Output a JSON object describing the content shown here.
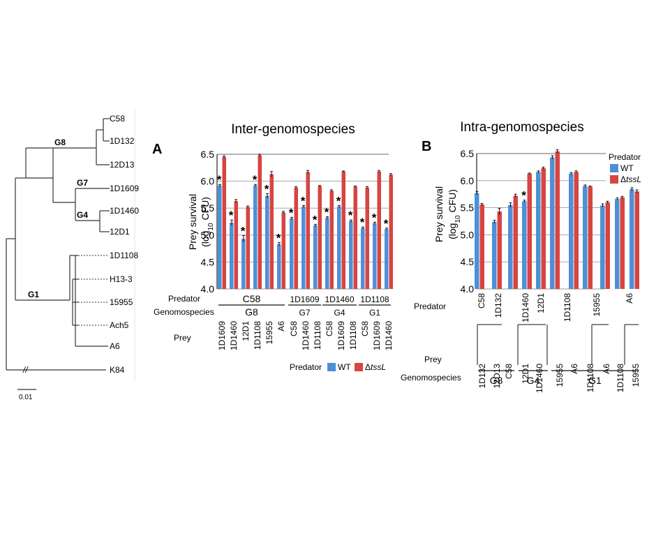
{
  "tree": {
    "leaves": [
      "C58",
      "1D132",
      "12D13",
      "1D1609",
      "1D1460",
      "12D1",
      "1D1108",
      "H13-3",
      "15955",
      "Ach5",
      "A6",
      "K84"
    ],
    "groups": [
      "G8",
      "G7",
      "G4",
      "G1"
    ],
    "break_mark": "//",
    "scale_label": "0.01"
  },
  "colors": {
    "wt": "#4f8fd8",
    "tssl": "#d64541",
    "grid": "#9a9a9a",
    "tree": "#333333"
  },
  "chart_data": [
    {
      "type": "bar",
      "panel": "A",
      "title": "Inter-genomospecies",
      "ylabel": "Prey survival",
      "ylabel2": "(log10 CFU)",
      "ylim": [
        4.0,
        6.5
      ],
      "yticks": [
        "4.0",
        "4.5",
        "5.0",
        "5.5",
        "6.0",
        "6.5"
      ],
      "grid": true,
      "row_labels": {
        "predator": "Predator",
        "genomospecies": "Genomospecies",
        "prey": "Prey"
      },
      "predator_groups": [
        {
          "predator": "C58",
          "genomospecies": "G8"
        },
        {
          "predator": "1D1609",
          "genomospecies": "G7"
        },
        {
          "predator": "1D1460",
          "genomospecies": "G4"
        },
        {
          "predator": "1D1108",
          "genomospecies": "G1"
        }
      ],
      "categories": [
        "1D1609",
        "1D1460",
        "12D1",
        "1D1108",
        "15955",
        "A6",
        "C58",
        "1D1460",
        "1D1108",
        "C58",
        "1D1609",
        "1D1108",
        "C58",
        "1D1609",
        "1D1460"
      ],
      "series": [
        {
          "name": "WT",
          "values": [
            5.92,
            5.23,
            4.93,
            5.92,
            5.73,
            4.83,
            5.31,
            5.53,
            5.18,
            5.32,
            5.53,
            5.26,
            5.13,
            5.22,
            5.11
          ],
          "errors": [
            0.02,
            0.05,
            0.06,
            0.02,
            0.04,
            0.03,
            0.02,
            0.02,
            0.02,
            0.02,
            0.02,
            0.02,
            0.02,
            0.02,
            0.02
          ]
        },
        {
          "name": "ΔtssL",
          "values": [
            6.45,
            5.63,
            5.52,
            6.48,
            6.13,
            5.42,
            5.88,
            6.17,
            5.91,
            5.82,
            6.18,
            5.9,
            5.88,
            6.18,
            6.12
          ],
          "errors": [
            0.02,
            0.03,
            0.02,
            0.02,
            0.05,
            0.02,
            0.02,
            0.03,
            0.01,
            0.02,
            0.01,
            0.01,
            0.02,
            0.02,
            0.02
          ]
        }
      ],
      "significant": [
        true,
        true,
        true,
        true,
        true,
        true,
        true,
        true,
        true,
        true,
        true,
        true,
        true,
        true,
        true
      ],
      "asterisk": "*",
      "legend": {
        "title": "Predator",
        "entries": [
          "WT",
          "ΔtssL"
        ]
      }
    },
    {
      "type": "bar",
      "panel": "B",
      "title": "Intra-genomospecies",
      "ylabel": "Prey survival",
      "ylabel2": "(log10 CFU)",
      "ylim": [
        4.0,
        6.5
      ],
      "yticks": [
        "4.0",
        "4.5",
        "5.0",
        "5.5",
        "6.0",
        "6.5"
      ],
      "grid": true,
      "row_labels": {
        "predator": "Predator",
        "prey": "Prey",
        "genomospecies": "Genomospecies"
      },
      "pairs": [
        {
          "predator": "C58",
          "preys": [
            "1D132",
            "12D13"
          ]
        },
        {
          "predator": "1D132",
          "preys": [
            "C58"
          ]
        },
        {
          "predator": "1D1460",
          "preys": [
            "12D1"
          ]
        },
        {
          "predator": "12D1",
          "preys": [
            "1D1460"
          ]
        },
        {
          "predator": "1D1108",
          "preys": [
            "15955",
            "A6"
          ]
        },
        {
          "predator": "15955",
          "preys": [
            "1D1108",
            "A6"
          ]
        },
        {
          "predator": "A6",
          "preys": [
            "1D1108",
            "15955"
          ]
        }
      ],
      "genomospecies": [
        "G8",
        "G4",
        "G1"
      ],
      "categories": [
        "1D132",
        "12D13",
        "C58",
        "12D1",
        "1D1460",
        "15955",
        "A6",
        "1D1108",
        "A6",
        "1D1108",
        "15955"
      ],
      "series": [
        {
          "name": "WT",
          "values": [
            5.77,
            5.24,
            5.55,
            5.62,
            6.16,
            6.43,
            6.13,
            5.9,
            5.54,
            5.66,
            5.84
          ],
          "errors": [
            0.03,
            0.03,
            0.04,
            0.02,
            0.02,
            0.03,
            0.02,
            0.02,
            0.03,
            0.02,
            0.03
          ]
        },
        {
          "name": "ΔtssL",
          "values": [
            5.56,
            5.43,
            5.72,
            6.13,
            6.23,
            6.54,
            6.16,
            5.89,
            5.6,
            5.69,
            5.8
          ],
          "errors": [
            0.02,
            0.06,
            0.03,
            0.01,
            0.02,
            0.03,
            0.02,
            0.01,
            0.02,
            0.02,
            0.03
          ]
        }
      ],
      "significant": [
        false,
        false,
        false,
        true,
        false,
        false,
        false,
        false,
        false,
        false,
        false
      ],
      "asterisk": "*",
      "legend": {
        "title": "Predator",
        "entries": [
          "WT",
          "ΔtssL"
        ]
      }
    }
  ]
}
